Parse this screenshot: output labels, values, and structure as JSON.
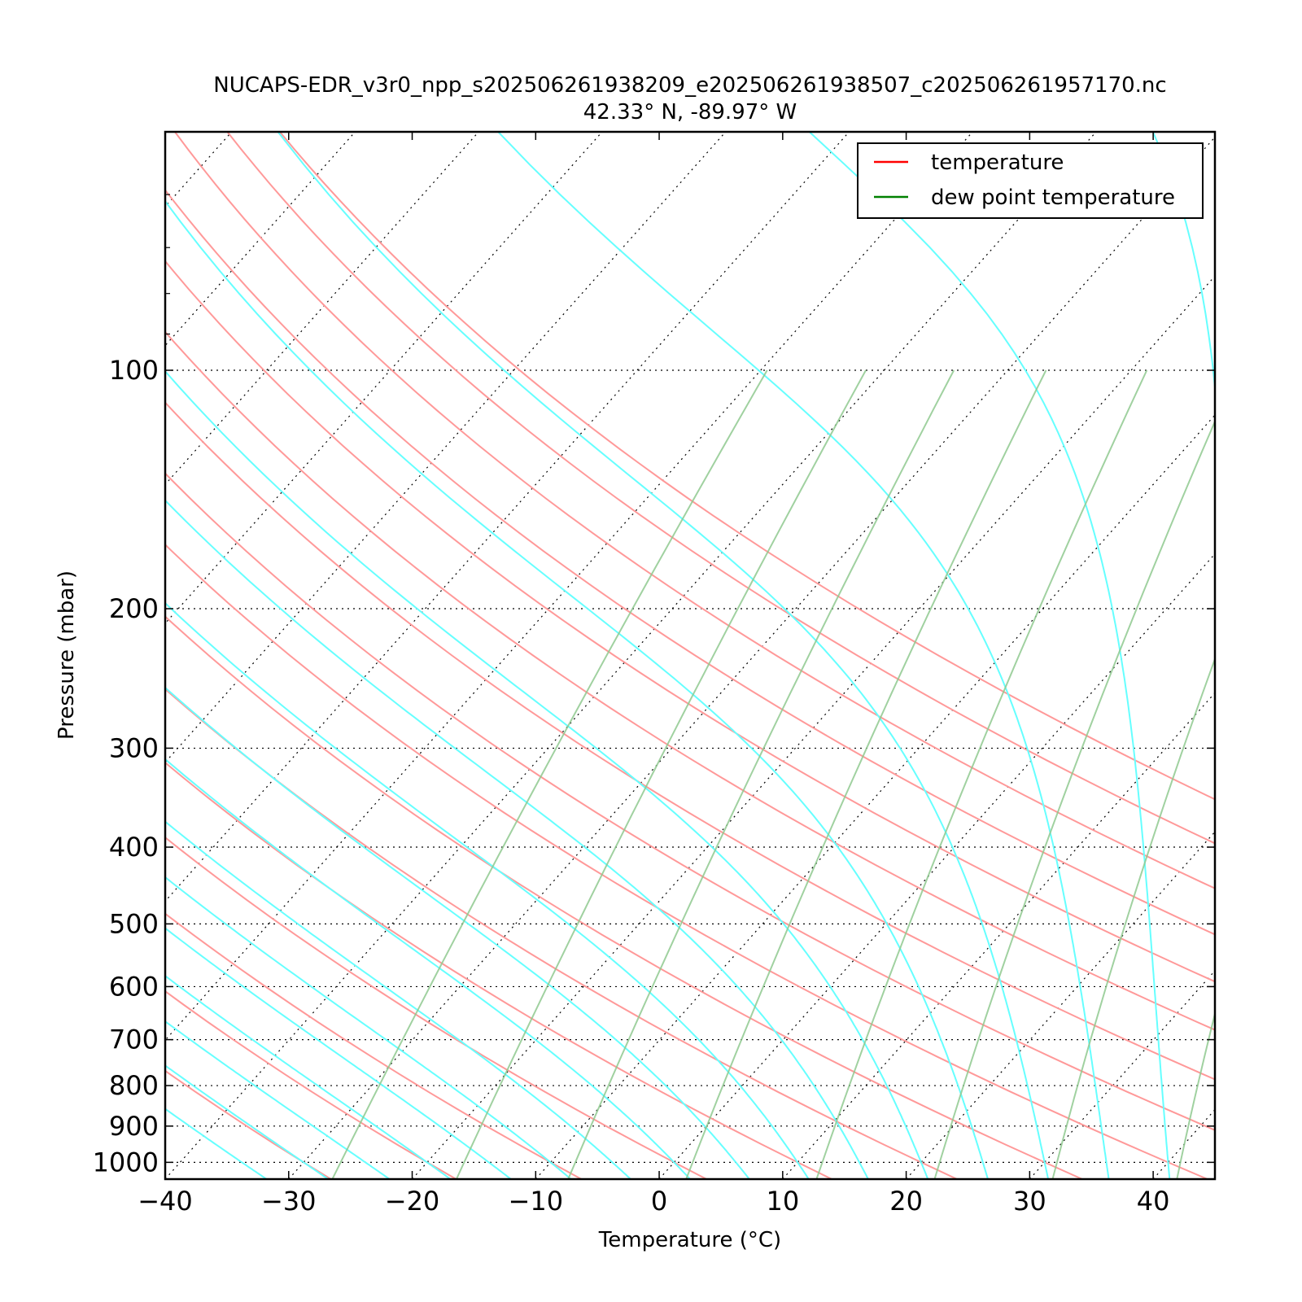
{
  "chart_data": {
    "type": "line",
    "subtype": "skew-T log-P diagram",
    "title": "NUCAPS-EDR_v3r0_npp_s202506261938209_e202506261938507_c202506261957170.nc",
    "subtitle": "42.33° N, -89.97° W",
    "xlabel": "Temperature (°C)",
    "ylabel": "Pressure (mbar)",
    "xlim": [
      -40,
      45
    ],
    "ylim": [
      1050,
      50
    ],
    "y_scale": "log",
    "x_ticks": [
      -40,
      -30,
      -20,
      -10,
      0,
      10,
      20,
      30,
      40
    ],
    "x_tick_labels": [
      "−40",
      "−30",
      "−20",
      "−10",
      "0",
      "10",
      "20",
      "30",
      "40"
    ],
    "y_ticks": [
      100,
      200,
      300,
      400,
      500,
      600,
      700,
      800,
      900,
      1000
    ],
    "y_tick_labels": [
      "100",
      "200",
      "300",
      "400",
      "500",
      "600",
      "700",
      "800",
      "900",
      "1000"
    ],
    "legend": {
      "placement": "top-right",
      "entries": [
        {
          "label": "temperature",
          "color": "#ff0000"
        },
        {
          "label": "dew point temperature",
          "color": "#008000"
        }
      ]
    },
    "background_lines": {
      "isotherms": {
        "style": "dotted",
        "color": "#000000",
        "values_c": [
          -110,
          -100,
          -90,
          -80,
          -70,
          -60,
          -50,
          -40,
          -30,
          -20,
          -10,
          0,
          10,
          20,
          30,
          40
        ]
      },
      "dry_adiabats": {
        "color": "#ff9999",
        "theta_c_at_1000mb": [
          -30,
          -20,
          -10,
          0,
          10,
          20,
          30,
          40,
          50,
          60,
          70,
          80,
          90,
          100,
          110,
          120
        ]
      },
      "moist_adiabats": {
        "color": "#66ffff",
        "start_temps_c_at_1000mb": [
          -35,
          -30,
          -25,
          -20,
          -15,
          -10,
          -5,
          0,
          5,
          10,
          15,
          20,
          25,
          30,
          35,
          40,
          45,
          50
        ]
      },
      "mixing_ratio_lines": {
        "color": "#99cc99",
        "start_temps_c_at_1000mb": [
          -27,
          -17,
          -8,
          1.5,
          12,
          21.5,
          31,
          41
        ]
      }
    },
    "series": []
  },
  "colors": {
    "isotherm": "#000000",
    "dry_adiabat": "#ff9999",
    "moist_adiabat": "#66ffff",
    "mixing_ratio": "#8fc98f",
    "gridline": "#000000",
    "axes": "#000000"
  }
}
